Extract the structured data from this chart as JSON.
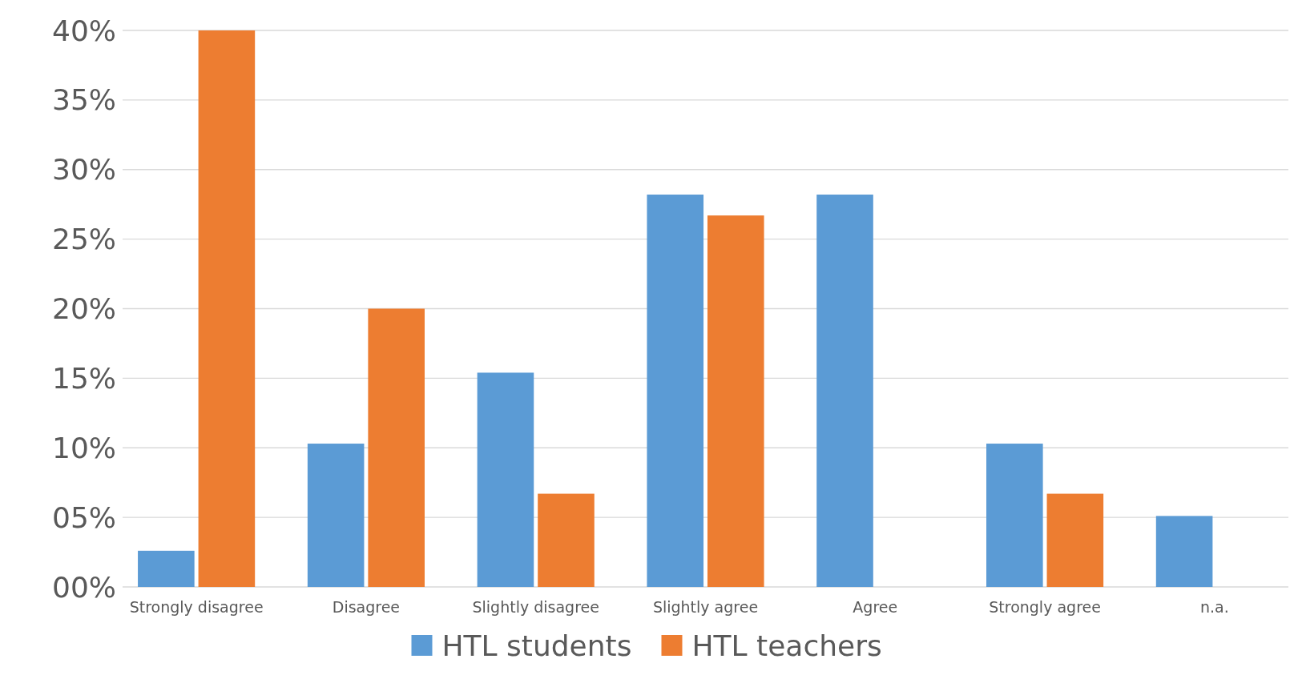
{
  "chart_data": {
    "type": "bar",
    "categories": [
      "Strongly disagree",
      "Disagree",
      "Slightly disagree",
      "Slightly agree",
      "Agree",
      "Strongly agree",
      "n.a."
    ],
    "series": [
      {
        "name": "HTL students",
        "color": "#5b9bd5",
        "values": [
          2.6,
          10.3,
          15.4,
          28.2,
          28.2,
          10.3,
          5.1
        ]
      },
      {
        "name": "HTL teachers",
        "color": "#ed7d31",
        "values": [
          40,
          20,
          6.7,
          26.7,
          0,
          6.7,
          0
        ]
      }
    ],
    "ylim": [
      0,
      40
    ],
    "yticks": [
      {
        "value": 0,
        "label": "00%"
      },
      {
        "value": 5,
        "label": "05%"
      },
      {
        "value": 10,
        "label": "10%"
      },
      {
        "value": 15,
        "label": "15%"
      },
      {
        "value": 20,
        "label": "20%"
      },
      {
        "value": 25,
        "label": "25%"
      },
      {
        "value": 30,
        "label": "30%"
      },
      {
        "value": 35,
        "label": "35%"
      },
      {
        "value": 40,
        "label": "40%"
      }
    ],
    "grid": "y",
    "legend": "bottom"
  }
}
